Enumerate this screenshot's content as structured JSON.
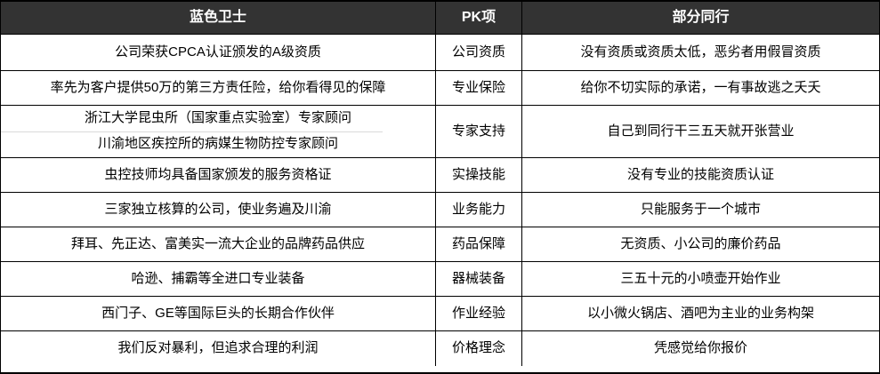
{
  "table": {
    "headers": {
      "ours": "蓝色卫士",
      "pk": "PK项",
      "peers": "部分同行"
    },
    "rows": [
      {
        "ours": "公司荣获CPCA认证颁发的A级资质",
        "pk": "公司资质",
        "peers": "没有资质或资质太低，恶劣者用假冒资质"
      },
      {
        "ours": "率先为客户提供50万的第三方责任险，给你看得见的保障",
        "pk": "专业保险",
        "peers": "给你不切实际的承诺，一有事故逃之夭夭"
      },
      {
        "ours_line1": "浙江大学昆虫所（国家重点实验室）专家顾问",
        "ours_line2": "川渝地区疾控所的病媒生物防控专家顾问",
        "pk": "专家支持",
        "peers": "自己到同行干三五天就开张营业"
      },
      {
        "ours": "虫控技师均具备国家颁发的服务资格证",
        "pk": "实操技能",
        "peers": "没有专业的技能资质认证"
      },
      {
        "ours": "三家独立核算的公司，使业务遍及川渝",
        "pk": "业务能力",
        "peers": "只能服务于一个城市"
      },
      {
        "ours": "拜耳、先正达、富美实一流大企业的品牌药品供应",
        "pk": "药品保障",
        "peers": "无资质、小公司的廉价药品"
      },
      {
        "ours": "哈逊、捕霸等全进口专业装备",
        "pk": "器械装备",
        "peers": "三五十元的小喷壶开始作业"
      },
      {
        "ours": "西门子、GE等国际巨头的长期合作伙伴",
        "pk": "作业经验",
        "peers": "以小微火锅店、酒吧为主业的业务构架"
      },
      {
        "ours": "我们反对暴利，但追求合理的利润",
        "pk": "价格理念",
        "peers": "凭感觉给你报价"
      }
    ],
    "colors": {
      "header_bg": "#333333",
      "header_text": "#ffffff",
      "border": "#000000",
      "sub_divider": "#d9d9d9",
      "body_text": "#000000",
      "body_bg": "#ffffff"
    }
  }
}
